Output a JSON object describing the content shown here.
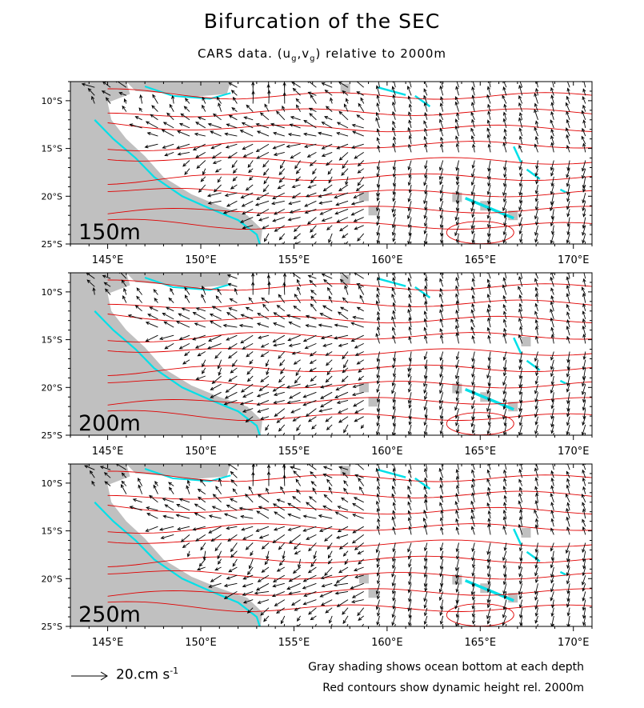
{
  "title": "Bifurcation of the SEC",
  "subtitle": {
    "text_before": "CARS data. (u",
    "sub_g1": "g",
    "comma": ",v",
    "sub_g2": "g",
    "text_after": ") relative to 2000m"
  },
  "panels": [
    {
      "depth_label": "150m"
    },
    {
      "depth_label": "200m"
    },
    {
      "depth_label": "250m"
    }
  ],
  "axes": {
    "lon_ticks": [
      "145°E",
      "150°E",
      "155°E",
      "160°E",
      "165°E",
      "170°E"
    ],
    "lon_values": [
      145,
      150,
      155,
      160,
      165,
      170
    ],
    "lat_ticks": [
      "10°S",
      "15°S",
      "20°S",
      "25°S"
    ],
    "lat_values": [
      10,
      15,
      20,
      25
    ],
    "lon_range": [
      143,
      171
    ],
    "lat_range": [
      8,
      25
    ]
  },
  "scale": {
    "value": "20.cm s",
    "exponent": "-1"
  },
  "notes": {
    "line1": "Gray shading shows ocean bottom at each depth",
    "line2": "Red contours show dynamic height rel. 2000m"
  },
  "colors": {
    "land": "#c0c0c0",
    "contour": "#e00000",
    "coast": "#00e0e8",
    "arrow": "#000000"
  }
}
